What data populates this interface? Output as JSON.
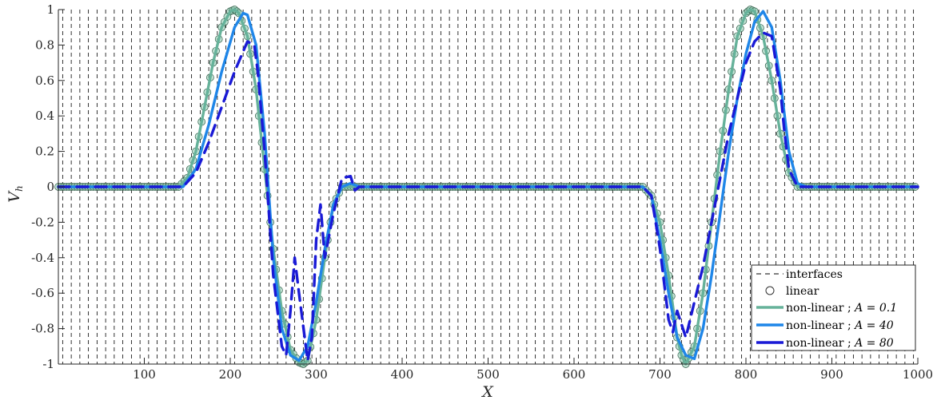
{
  "chart_data": {
    "type": "line",
    "xlabel": "X",
    "ylabel": "V",
    "ylabel_sub": "h",
    "xlim": [
      0,
      1000
    ],
    "ylim": [
      -1,
      1
    ],
    "x_ticks": [
      100,
      200,
      300,
      400,
      500,
      600,
      700,
      800,
      900,
      1000
    ],
    "x_tick_labels": [
      "100",
      "200",
      "300",
      "400",
      "500",
      "600",
      "700",
      "800",
      "900",
      "1000"
    ],
    "y_ticks": [
      -1,
      -0.8,
      -0.6,
      -0.4,
      -0.2,
      0,
      0.2,
      0.4,
      0.6,
      0.8,
      1
    ],
    "y_tick_labels": [
      "-1",
      "-0.8",
      "-0.6",
      "-0.4",
      "-0.2",
      "0",
      "0.2",
      "0.4",
      "0.6",
      "0.8",
      "1"
    ],
    "interfaces": {
      "start": 5,
      "step": 10,
      "count": 100,
      "color": "#000000",
      "y_span": [
        -1,
        1
      ]
    },
    "legend": {
      "position": "bottom-right",
      "entries": [
        {
          "prefix": "interfaces",
          "math": "",
          "style": "dashed-black"
        },
        {
          "prefix": "linear",
          "math": "",
          "style": "marker"
        },
        {
          "prefix": "non-linear ; ",
          "math": "A = 0.1",
          "style": "line",
          "color": "#66b29a"
        },
        {
          "prefix": "non-linear ; ",
          "math": "A = 40",
          "style": "line",
          "color": "#1f86e8"
        },
        {
          "prefix": "non-linear ; ",
          "math": "A = 80",
          "style": "dashed",
          "color": "#1a1ad6"
        }
      ]
    },
    "series": [
      {
        "name": "linear",
        "style": "marker",
        "color": "#5fa88a",
        "x": [
          0,
          25,
          50,
          75,
          100,
          125,
          140,
          150,
          160,
          170,
          180,
          190,
          200,
          205,
          210,
          220,
          230,
          240,
          250,
          260,
          270,
          280,
          285,
          290,
          300,
          310,
          320,
          330,
          340,
          350,
          400,
          450,
          500,
          550,
          600,
          650,
          680,
          690,
          700,
          710,
          720,
          725,
          730,
          740,
          750,
          760,
          770,
          780,
          790,
          800,
          805,
          810,
          820,
          830,
          840,
          850,
          860,
          870,
          880,
          900,
          925,
          950,
          975,
          1000
        ],
        "y": [
          0,
          0,
          0,
          0,
          0,
          0,
          0,
          0.05,
          0.2,
          0.45,
          0.7,
          0.9,
          0.99,
          1,
          0.98,
          0.85,
          0.55,
          0.1,
          -0.35,
          -0.7,
          -0.92,
          -0.99,
          -1,
          -0.98,
          -0.75,
          -0.4,
          -0.1,
          0,
          0,
          0,
          0,
          0,
          0,
          0,
          0,
          0,
          0,
          -0.05,
          -0.2,
          -0.5,
          -0.85,
          -0.95,
          -1,
          -0.9,
          -0.6,
          -0.2,
          0.2,
          0.55,
          0.85,
          0.98,
          1,
          0.99,
          0.85,
          0.6,
          0.3,
          0.08,
          0,
          0,
          0,
          0,
          0,
          0,
          0,
          0
        ]
      },
      {
        "name": "non-linear ; A = 0.1",
        "style": "line",
        "color": "#66b29a",
        "x": [
          0,
          25,
          50,
          75,
          100,
          125,
          140,
          150,
          160,
          170,
          180,
          190,
          200,
          205,
          210,
          220,
          230,
          240,
          250,
          260,
          270,
          280,
          285,
          290,
          300,
          310,
          320,
          330,
          340,
          350,
          400,
          450,
          500,
          550,
          600,
          650,
          680,
          690,
          700,
          710,
          720,
          725,
          730,
          740,
          750,
          760,
          770,
          780,
          790,
          800,
          805,
          810,
          820,
          830,
          840,
          850,
          860,
          870,
          880,
          900,
          925,
          950,
          975,
          1000
        ],
        "y": [
          0,
          0,
          0,
          0,
          0,
          0,
          0,
          0.05,
          0.2,
          0.45,
          0.7,
          0.9,
          0.99,
          1,
          0.98,
          0.85,
          0.55,
          0.1,
          -0.35,
          -0.7,
          -0.92,
          -0.99,
          -1,
          -0.98,
          -0.75,
          -0.4,
          -0.1,
          0,
          0,
          0,
          0,
          0,
          0,
          0,
          0,
          0,
          0,
          -0.05,
          -0.2,
          -0.5,
          -0.85,
          -0.95,
          -1,
          -0.9,
          -0.6,
          -0.2,
          0.2,
          0.55,
          0.85,
          0.98,
          1,
          0.99,
          0.85,
          0.6,
          0.3,
          0.08,
          0,
          0,
          0,
          0,
          0,
          0,
          0,
          0
        ]
      },
      {
        "name": "non-linear ; A = 40",
        "style": "line",
        "color": "#1f86e8",
        "x": [
          0,
          25,
          50,
          75,
          100,
          125,
          145,
          160,
          175,
          190,
          205,
          215,
          220,
          230,
          240,
          250,
          260,
          270,
          280,
          290,
          300,
          310,
          320,
          330,
          340,
          350,
          400,
          500,
          600,
          650,
          680,
          690,
          700,
          710,
          720,
          730,
          740,
          750,
          760,
          770,
          780,
          790,
          800,
          810,
          820,
          830,
          840,
          850,
          860,
          870,
          880,
          900,
          950,
          1000
        ],
        "y": [
          0,
          0,
          0,
          0,
          0,
          0,
          0,
          0.1,
          0.35,
          0.65,
          0.9,
          0.98,
          0.97,
          0.8,
          0.3,
          -0.4,
          -0.8,
          -0.95,
          -0.98,
          -0.9,
          -0.65,
          -0.35,
          -0.1,
          0,
          0.02,
          0,
          0,
          0,
          0,
          0,
          0,
          -0.05,
          -0.3,
          -0.6,
          -0.85,
          -0.95,
          -0.97,
          -0.8,
          -0.5,
          -0.15,
          0.2,
          0.5,
          0.75,
          0.93,
          0.99,
          0.9,
          0.6,
          0.2,
          0.02,
          0,
          0,
          0,
          0,
          0
        ]
      },
      {
        "name": "non-linear ; A = 80",
        "style": "dashed",
        "color": "#1a1ad6",
        "x": [
          0,
          25,
          50,
          75,
          100,
          125,
          145,
          160,
          175,
          190,
          205,
          220,
          228,
          232,
          240,
          250,
          260,
          265,
          270,
          275,
          280,
          290,
          295,
          300,
          305,
          310,
          320,
          330,
          340,
          345,
          350,
          400,
          500,
          600,
          650,
          680,
          690,
          700,
          710,
          715,
          720,
          730,
          740,
          750,
          760,
          770,
          780,
          790,
          800,
          810,
          820,
          830,
          840,
          845,
          850,
          860,
          870,
          900,
          950,
          1000
        ],
        "y": [
          0,
          0,
          0,
          0,
          0,
          0,
          0,
          0.08,
          0.25,
          0.45,
          0.65,
          0.82,
          0.8,
          0.65,
          0.2,
          -0.5,
          -0.9,
          -0.95,
          -0.7,
          -0.4,
          -0.6,
          -0.98,
          -0.85,
          -0.3,
          -0.1,
          -0.4,
          -0.15,
          0.05,
          0.06,
          -0.02,
          0,
          0,
          0,
          0,
          0,
          0,
          -0.05,
          -0.35,
          -0.75,
          -0.82,
          -0.7,
          -0.85,
          -0.65,
          -0.45,
          -0.2,
          0.05,
          0.3,
          0.5,
          0.7,
          0.82,
          0.87,
          0.85,
          0.55,
          0.3,
          0.1,
          0,
          0,
          0,
          0,
          0
        ]
      }
    ]
  }
}
